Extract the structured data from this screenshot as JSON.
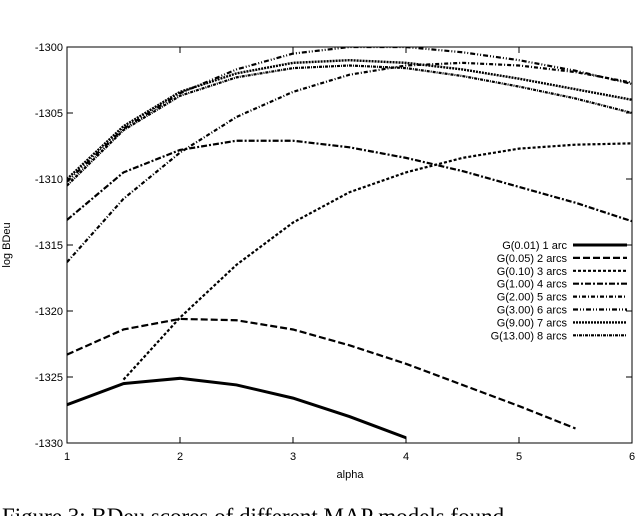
{
  "chart_data": {
    "type": "line",
    "x": [
      1,
      1.5,
      2,
      2.5,
      3,
      3.5,
      4,
      4.5,
      5,
      5.5,
      6
    ],
    "xlabel": "alpha",
    "ylabel": "log BDeu",
    "xlim": [
      1,
      6
    ],
    "xticks": [
      1,
      2,
      3,
      4,
      5,
      6
    ],
    "ylim": [
      -1330,
      -1300
    ],
    "yticks": [
      -1330,
      -1325,
      -1320,
      -1315,
      -1310,
      -1305,
      -1300
    ],
    "legend": "right",
    "caption": "Figure 3: BDeu scores of different MAP models found",
    "series": [
      {
        "name": "G(0.01) 1 arc",
        "color": "#000000",
        "dash": "none",
        "width": 3,
        "values": [
          -1327.1,
          -1325.5,
          -1325.1,
          -1325.6,
          -1326.6,
          -1328.0,
          -1329.6,
          null,
          null,
          null,
          null
        ]
      },
      {
        "name": "G(0.05) 2 arcs",
        "color": "#000000",
        "dash": "7,3",
        "width": 2.2,
        "values": [
          -1323.3,
          -1321.4,
          -1320.6,
          -1320.7,
          -1321.4,
          -1322.6,
          -1324.0,
          -1325.6,
          -1327.2,
          -1328.9,
          null
        ]
      },
      {
        "name": "G(0.10) 3 arcs",
        "color": "#000000",
        "dash": "3,2",
        "width": 2.2,
        "values": [
          null,
          -1325.2,
          -1320.5,
          -1316.5,
          -1313.3,
          -1311.0,
          -1309.5,
          -1308.4,
          -1307.7,
          -1307.4,
          -1307.3
        ]
      },
      {
        "name": "G(1.00) 4 arcs",
        "color": "#000000",
        "dash": "6,2,2,2",
        "width": 2.2,
        "values": [
          -1313.1,
          -1309.5,
          -1307.8,
          -1307.1,
          -1307.1,
          -1307.6,
          -1308.4,
          -1309.4,
          -1310.6,
          -1311.8,
          -1313.2
        ]
      },
      {
        "name": "G(2.00) 5 arcs",
        "color": "#000000",
        "dash": "4,2,1,2",
        "width": 2.2,
        "values": [
          -1316.3,
          -1311.5,
          -1308.0,
          -1305.3,
          -1303.4,
          -1302.1,
          -1301.4,
          -1301.2,
          -1301.4,
          -1301.9,
          -1302.7
        ]
      },
      {
        "name": "G(3.00) 6 arcs",
        "color": "#000000",
        "dash": "5,2,1,2,1,2",
        "width": 2.2,
        "values": [
          -1310.2,
          -1306.2,
          -1303.5,
          -1301.7,
          -1300.5,
          -1300.0,
          -1300.0,
          -1300.4,
          -1301.0,
          -1301.8,
          -1302.8
        ]
      },
      {
        "name": "G(9.00) 7 arcs",
        "color": "#000000",
        "dash": "2,1",
        "width": 2.4,
        "values": [
          -1310.0,
          -1306.0,
          -1303.4,
          -1302.0,
          -1301.2,
          -1301.0,
          -1301.2,
          -1301.7,
          -1302.4,
          -1303.2,
          -1304.0
        ]
      },
      {
        "name": "G(13.00) 8 arcs",
        "color": "#000000",
        "dash": "3,1,1,1",
        "width": 2.2,
        "values": [
          -1310.5,
          -1306.3,
          -1303.7,
          -1302.3,
          -1301.6,
          -1301.4,
          -1301.6,
          -1302.2,
          -1303.0,
          -1303.9,
          -1305.0
        ]
      }
    ]
  }
}
